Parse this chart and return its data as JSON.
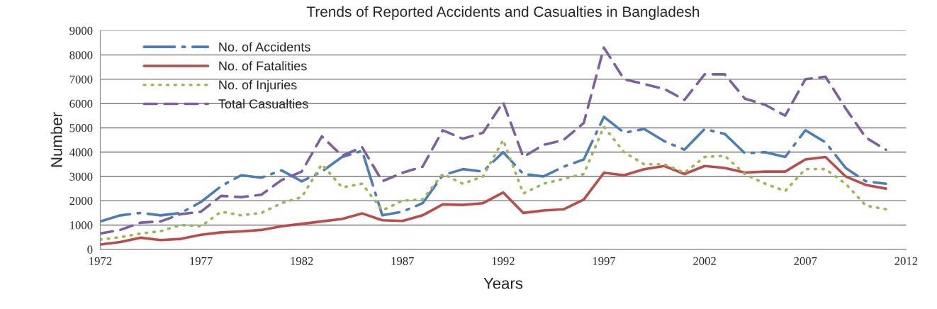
{
  "chart_data": {
    "type": "line",
    "title": "Trends of Reported Accidents and Casualties in Bangladesh",
    "xlabel": "Years",
    "ylabel": "Number",
    "x": [
      1972,
      1973,
      1974,
      1975,
      1976,
      1977,
      1978,
      1979,
      1980,
      1981,
      1982,
      1983,
      1984,
      1985,
      1986,
      1987,
      1988,
      1989,
      1990,
      1991,
      1992,
      1993,
      1994,
      1995,
      1996,
      1997,
      1998,
      1999,
      2000,
      2001,
      2002,
      2003,
      2004,
      2005,
      2006,
      2007,
      2008,
      2009,
      2010,
      2011
    ],
    "series": [
      {
        "name": "No. of Accidents",
        "color": "#4a7ebb",
        "line_style": "dashdot",
        "values": [
          1150,
          1400,
          1500,
          1400,
          1500,
          1950,
          2600,
          3050,
          2950,
          3250,
          2800,
          3200,
          3800,
          4050,
          1400,
          1550,
          1900,
          3050,
          3300,
          3200,
          4000,
          3100,
          3000,
          3400,
          3700,
          5450,
          4800,
          4950,
          4450,
          4100,
          4950,
          4750,
          3950,
          4000,
          3800,
          4900,
          4400,
          3350,
          2800,
          2700
        ]
      },
      {
        "name": "No. of Fatalities",
        "color": "#be4b48",
        "line_style": "solid",
        "values": [
          200,
          300,
          480,
          380,
          430,
          600,
          700,
          740,
          800,
          950,
          1050,
          1150,
          1250,
          1480,
          1200,
          1170,
          1400,
          1850,
          1830,
          1900,
          2340,
          1500,
          1600,
          1650,
          2050,
          3150,
          3050,
          3300,
          3430,
          3100,
          3430,
          3350,
          3160,
          3200,
          3200,
          3700,
          3800,
          3000,
          2650,
          2500
        ]
      },
      {
        "name": "No. of Injuries",
        "color": "#98b954",
        "line_style": "dotted",
        "values": [
          400,
          500,
          650,
          750,
          1000,
          950,
          1550,
          1400,
          1500,
          1900,
          2150,
          3500,
          2550,
          2700,
          1600,
          2000,
          2050,
          3100,
          2700,
          3000,
          4500,
          2300,
          2700,
          2900,
          3100,
          5050,
          4000,
          3500,
          3500,
          3150,
          3800,
          3850,
          3100,
          2700,
          2400,
          3300,
          3300,
          2700,
          1800,
          1650
        ]
      },
      {
        "name": "Total Casualties",
        "color": "#7d60a0",
        "line_style": "dashed",
        "values": [
          650,
          800,
          1100,
          1150,
          1450,
          1550,
          2200,
          2150,
          2250,
          2850,
          3200,
          4650,
          3850,
          4200,
          2800,
          3150,
          3400,
          4900,
          4550,
          4800,
          6050,
          3800,
          4300,
          4500,
          5200,
          8300,
          7000,
          6800,
          6600,
          6150,
          7200,
          7200,
          6200,
          5950,
          5500,
          7000,
          7100,
          5800,
          4600,
          4100
        ]
      }
    ],
    "xlim": [
      1972,
      2012
    ],
    "xticks": [
      1972,
      1977,
      1982,
      1987,
      1992,
      1997,
      2002,
      2007,
      2012
    ],
    "ylim": [
      0,
      9000
    ],
    "yticks": [
      0,
      1000,
      2000,
      3000,
      4000,
      5000,
      6000,
      7000,
      8000,
      9000
    ],
    "grid": "y",
    "legend": "top left",
    "marker": "none"
  }
}
